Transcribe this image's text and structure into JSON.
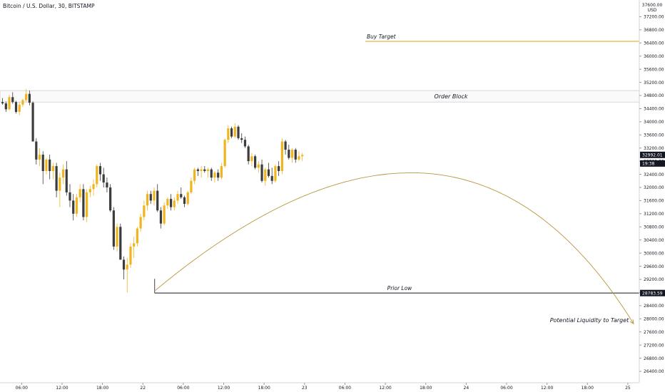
{
  "header": {
    "title": "Bitcoin / U.S. Dollar, 30, BITSTAMP",
    "currency_top": "37600.00",
    "currency_code": "USD"
  },
  "colors": {
    "bull": "#f0b41e",
    "bear": "#3c3c3c",
    "buy_target_line": "#e8b53c",
    "curve": "#b8963c",
    "order_block_border": "#cfcfcf",
    "prior_low_line": "#131722",
    "axis_label_bg": "#131722",
    "axis_text": "#131722"
  },
  "chart_data": {
    "type": "candlestick",
    "price_scale": {
      "min": 26400,
      "max": 37600,
      "ticks": [
        37200,
        36800,
        36400,
        36000,
        35600,
        35200,
        34800,
        34400,
        34000,
        33600,
        33200,
        32800,
        32400,
        32000,
        31600,
        31200,
        30800,
        30400,
        30000,
        29600,
        29200,
        28800,
        28400,
        28000,
        27600,
        27200,
        26800,
        26400
      ],
      "tick_labels": [
        "37200.00",
        "36800.00",
        "36400.00",
        "36000.00",
        "35600.00",
        "35200.00",
        "34800.00",
        "34400.00",
        "34000.00",
        "33600.00",
        "33200.00",
        "32800.00",
        "32400.00",
        "32000.00",
        "31600.00",
        "31200.00",
        "30800.00",
        "30400.00",
        "30000.00",
        "29600.00",
        "29200.00",
        "28800.00",
        "28400.00",
        "28000.00",
        "27600.00",
        "27200.00",
        "26800.00",
        "26400.00"
      ]
    },
    "time_axis": {
      "labels": [
        "06:00",
        "12:00",
        "18:00",
        "22",
        "06:00",
        "12:00",
        "18:00",
        "23",
        "06:00",
        "12:00",
        "18:00",
        "24",
        "06:00",
        "12:00",
        "18:00",
        "25"
      ],
      "bars_per_label": 12
    },
    "candles": [
      [
        34600,
        34720,
        34520,
        34560
      ],
      [
        34560,
        34620,
        34300,
        34380
      ],
      [
        34380,
        34820,
        34350,
        34750
      ],
      [
        34750,
        34900,
        34550,
        34600
      ],
      [
        34600,
        34640,
        34250,
        34300
      ],
      [
        34300,
        34600,
        34200,
        34520
      ],
      [
        34520,
        34700,
        34450,
        34660
      ],
      [
        34660,
        35000,
        34600,
        34850
      ],
      [
        34850,
        34950,
        34500,
        34580
      ],
      [
        34580,
        34620,
        33400,
        33400
      ],
      [
        33400,
        33500,
        32700,
        32850
      ],
      [
        32850,
        33200,
        32650,
        33000
      ],
      [
        33000,
        33100,
        32100,
        32500
      ],
      [
        32500,
        32900,
        32400,
        32850
      ],
      [
        32850,
        33000,
        32250,
        32500
      ],
      [
        32500,
        32750,
        32250,
        32650
      ],
      [
        32650,
        32750,
        31700,
        31900
      ],
      [
        31900,
        32450,
        31400,
        32300
      ],
      [
        32300,
        32700,
        32100,
        32550
      ],
      [
        32550,
        32800,
        31750,
        31850
      ],
      [
        31850,
        32100,
        31400,
        31600
      ],
      [
        31600,
        31800,
        31000,
        31200
      ],
      [
        31200,
        31800,
        31100,
        31700
      ],
      [
        31700,
        32100,
        31550,
        31950
      ],
      [
        31950,
        32100,
        31000,
        31100
      ],
      [
        31100,
        31950,
        30950,
        31850
      ],
      [
        31850,
        32050,
        31700,
        31950
      ],
      [
        31950,
        32250,
        31750,
        32100
      ],
      [
        32100,
        32700,
        32000,
        32650
      ],
      [
        32650,
        32750,
        32200,
        32400
      ],
      [
        32400,
        32600,
        32000,
        32150
      ],
      [
        32150,
        32300,
        31850,
        32000
      ],
      [
        32000,
        32100,
        31250,
        31300
      ],
      [
        31300,
        31400,
        30100,
        30200
      ],
      [
        30200,
        30900,
        30050,
        30800
      ],
      [
        30800,
        30900,
        29800,
        29800
      ],
      [
        29800,
        29900,
        29200,
        29500
      ],
      [
        29500,
        29850,
        28800,
        29650
      ],
      [
        29650,
        30300,
        29550,
        30200
      ],
      [
        30200,
        30500,
        29850,
        30300
      ],
      [
        30300,
        30800,
        30200,
        30750
      ],
      [
        30750,
        31200,
        30650,
        31100
      ],
      [
        31100,
        31600,
        31000,
        31450
      ],
      [
        31450,
        31900,
        31300,
        31800
      ],
      [
        31800,
        31900,
        31500,
        31600
      ],
      [
        31600,
        32000,
        31450,
        31900
      ],
      [
        31900,
        32100,
        31250,
        31300
      ],
      [
        31300,
        31400,
        30750,
        30900
      ],
      [
        30900,
        31550,
        30850,
        31450
      ],
      [
        31450,
        31700,
        31350,
        31650
      ],
      [
        31650,
        31800,
        31300,
        31400
      ],
      [
        31400,
        31700,
        31300,
        31600
      ],
      [
        31600,
        31900,
        31500,
        31800
      ],
      [
        31800,
        32000,
        31650,
        31700
      ],
      [
        31700,
        31750,
        31400,
        31500
      ],
      [
        31500,
        31900,
        31450,
        31850
      ],
      [
        31850,
        32300,
        31800,
        32200
      ],
      [
        32200,
        32600,
        32100,
        32550
      ],
      [
        32550,
        32600,
        32350,
        32500
      ],
      [
        32500,
        32650,
        32300,
        32550
      ],
      [
        32550,
        32650,
        32450,
        32500
      ],
      [
        32500,
        32600,
        32300,
        32550
      ],
      [
        32550,
        32600,
        32200,
        32300
      ],
      [
        32300,
        32500,
        32150,
        32450
      ],
      [
        32450,
        32550,
        32200,
        32300
      ],
      [
        32300,
        32750,
        32250,
        32650
      ],
      [
        32650,
        33500,
        32600,
        33450
      ],
      [
        33450,
        33900,
        33350,
        33800
      ],
      [
        33800,
        33850,
        33500,
        33550
      ],
      [
        33550,
        33950,
        33500,
        33850
      ],
      [
        33850,
        33900,
        33450,
        33500
      ],
      [
        33500,
        33650,
        33350,
        33450
      ],
      [
        33450,
        33550,
        33200,
        33250
      ],
      [
        33250,
        33300,
        32700,
        32800
      ],
      [
        32800,
        33050,
        32650,
        32950
      ],
      [
        32950,
        33000,
        32550,
        32600
      ],
      [
        32600,
        32800,
        32450,
        32700
      ],
      [
        32700,
        32850,
        32150,
        32200
      ],
      [
        32200,
        32600,
        32050,
        32550
      ],
      [
        32550,
        32750,
        32300,
        32350
      ],
      [
        32350,
        32600,
        32100,
        32200
      ],
      [
        32200,
        32700,
        32150,
        32650
      ],
      [
        32650,
        32800,
        32350,
        32500
      ],
      [
        32500,
        33500,
        32400,
        33400
      ],
      [
        33400,
        33450,
        33000,
        33150
      ],
      [
        33150,
        33300,
        32850,
        32900
      ],
      [
        32900,
        33200,
        32750,
        33150
      ],
      [
        33150,
        33200,
        32750,
        32850
      ],
      [
        32850,
        33100,
        32800,
        32950
      ],
      [
        32950,
        33050,
        32800,
        32992
      ]
    ],
    "annotations": {
      "buy_target": {
        "label": "Buy Target",
        "price": 36450
      },
      "order_block": {
        "label": "Order Block",
        "top": 34950,
        "bottom": 34600
      },
      "prior_low": {
        "label": "Prior Low",
        "price": 28783.59
      },
      "liquidity": {
        "label": "Potential Liquidity to Target",
        "end_price": 27850
      }
    },
    "price_labels": [
      {
        "price": 32992.01,
        "text": "32992.01"
      },
      {
        "price": 32730,
        "text": "19:38"
      },
      {
        "price": 28783.59,
        "text": "28783.59"
      }
    ]
  }
}
